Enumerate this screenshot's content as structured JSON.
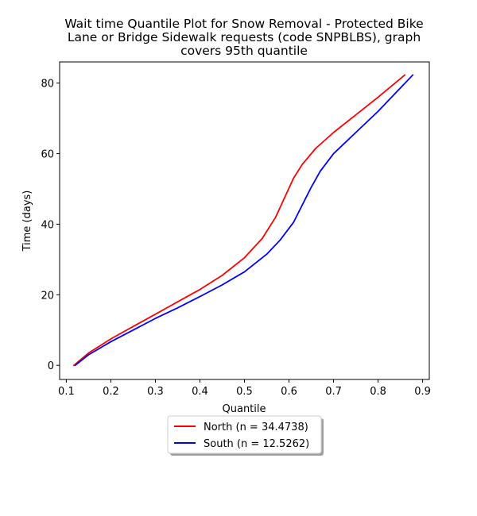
{
  "chart_data": {
    "type": "line",
    "title_lines": [
      "Wait time Quantile Plot for Snow Removal - Protected Bike",
      "Lane or Bridge Sidewalk  requests (code SNPBLBS), graph",
      "covers 95th quantile"
    ],
    "xlabel": "Quantile",
    "ylabel": "Time (days)",
    "xlim": [
      0.085,
      0.915
    ],
    "ylim": [
      -4,
      86
    ],
    "xticks": [
      0.1,
      0.2,
      0.3,
      0.4,
      0.5,
      0.6,
      0.7,
      0.8,
      0.9
    ],
    "xtick_labels": [
      "0.1",
      "0.2",
      "0.3",
      "0.4",
      "0.5",
      "0.6",
      "0.7",
      "0.8",
      "0.9"
    ],
    "yticks": [
      0,
      20,
      40,
      60,
      80
    ],
    "ytick_labels": [
      "0",
      "20",
      "40",
      "60",
      "80"
    ],
    "grid": false,
    "legend_position": "below-center",
    "series": [
      {
        "name": "North (n = 34.4738)",
        "color": "#ff0000",
        "x": [
          0.117,
          0.15,
          0.2,
          0.25,
          0.3,
          0.35,
          0.4,
          0.45,
          0.5,
          0.54,
          0.57,
          0.59,
          0.61,
          0.63,
          0.66,
          0.7,
          0.75,
          0.8,
          0.86
        ],
        "y": [
          0,
          3.5,
          7.5,
          11,
          14.5,
          18,
          21.5,
          25.5,
          30.5,
          36,
          42,
          47.5,
          53,
          57,
          61.5,
          66,
          71,
          76,
          82.3
        ]
      },
      {
        "name": "South (n = 12.5262)",
        "color": "#0000ff",
        "x": [
          0.12,
          0.15,
          0.2,
          0.25,
          0.3,
          0.35,
          0.4,
          0.45,
          0.5,
          0.55,
          0.58,
          0.61,
          0.63,
          0.65,
          0.67,
          0.7,
          0.75,
          0.8,
          0.878
        ],
        "y": [
          0,
          3,
          6.7,
          10,
          13.3,
          16.3,
          19.5,
          22.8,
          26.5,
          31.5,
          35.5,
          40.5,
          45.5,
          50.5,
          55,
          60,
          66,
          72,
          82.3
        ]
      }
    ]
  }
}
